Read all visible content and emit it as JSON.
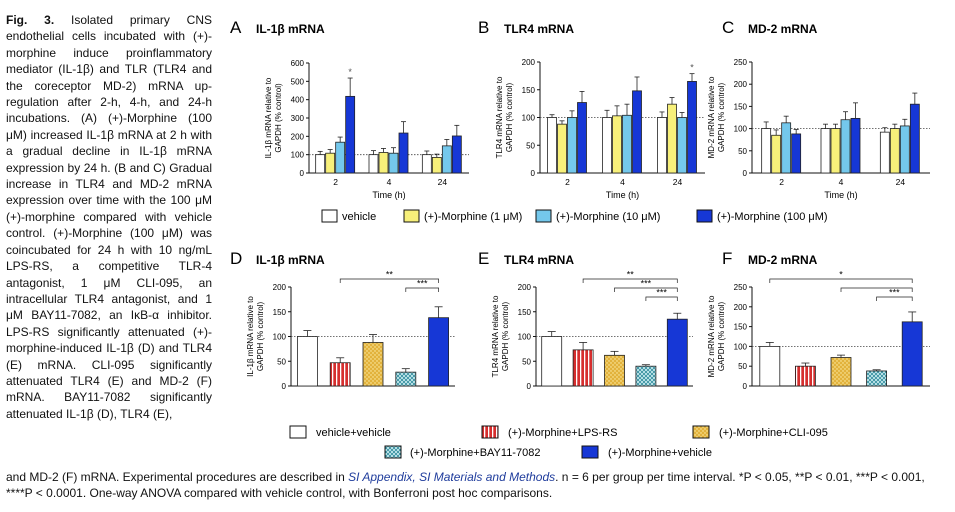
{
  "caption": {
    "fig_label": "Fig. 3.",
    "body": "Isolated primary CNS endothelial cells incubated with (+)-morphine induce proinflammatory mediator (IL-1β) and TLR (TLR4 and the coreceptor MD-2) mRNA up-regulation after 2-h, 4-h, and 24-h incubations. (A) (+)-Morphine (100 μM) increased IL-1β mRNA at 2 h with a gradual decline in IL-1β mRNA expression by 24 h. (B and C) Gradual increase in TLR4 and MD-2 mRNA expression over time with the 100 μM (+)-morphine compared with vehicle control. (+)-Morphine (100 μM) was coincubated for 24 h with 10 ng/mL LPS-RS, a competitive TLR-4 antagonist, 1 μM CLI-095, an intracellular TLR4 antagonist, and 1 μM BAY11-7082, an IκB-α inhibitor. LPS-RS significantly attenuated (+)-morphine-induced IL-1β (D) and TLR4 (E) mRNA. CLI-095 significantly attenuated TLR4 (E) and MD-2 (F) mRNA. BAY11-7082 significantly attenuated IL-1β (D), TLR4 (E),",
    "tail_start": "and MD-2 (F) mRNA. Experimental procedures are described in ",
    "tail_link": "SI Appendix, SI Materials and Methods",
    "tail_end": ". n = 6 per group per time interval. *P < 0.05, **P < 0.01, ***P < 0.001, ****P < 0.0001. One-way ANOVA compared with vehicle control, with Bonferroni post hoc comparisons."
  },
  "colors": {
    "vehicle": "#ffffff",
    "morphine_1": "#f7f07a",
    "morphine_10": "#74c8ec",
    "morphine_100": "#1637d6",
    "lps_rs": "#d62e2e",
    "cli095": "#e2b23c",
    "bay11": "#2d8a9a",
    "veh_morphine": "#1637d6"
  },
  "legend_top": [
    "vehicle",
    "(+)-Morphine (1 μM)",
    "(+)-Morphine (10 μM)",
    "(+)-Morphine (100 μM)"
  ],
  "legend_bottom": [
    "vehicle+vehicle",
    "(+)-Morphine+LPS-RS",
    "(+)-Morphine+CLI-095",
    "(+)-Morphine+BAY11-7082",
    "(+)-Morphine+vehicle"
  ],
  "chart_data": [
    {
      "panel": "A",
      "type": "bar",
      "title": "IL-1β mRNA",
      "ylabel": "IL-1β mRNA relative to GAPDH (% control)",
      "xlabel": "Time (h)",
      "categories": [
        "2",
        "4",
        "24"
      ],
      "ylim": [
        0,
        600
      ],
      "yticks": [
        0,
        100,
        200,
        300,
        400,
        500,
        600
      ],
      "series": [
        {
          "name": "vehicle",
          "values": [
            100,
            100,
            100
          ],
          "errors": [
            18,
            22,
            20
          ]
        },
        {
          "name": "(+)-Morphine (1 μM)",
          "values": [
            108,
            112,
            85
          ],
          "errors": [
            20,
            22,
            18
          ]
        },
        {
          "name": "(+)-Morphine (10 μM)",
          "values": [
            168,
            108,
            148
          ],
          "errors": [
            28,
            30,
            35
          ]
        },
        {
          "name": "(+)-Morphine (100 μM)",
          "values": [
            418,
            218,
            202
          ],
          "errors": [
            100,
            62,
            58
          ]
        }
      ],
      "annotations": [
        {
          "category": "2",
          "text": "*"
        }
      ]
    },
    {
      "panel": "B",
      "type": "bar",
      "title": "TLR4 mRNA",
      "ylabel": "TLR4 mRNA relative to GAPDH (% control)",
      "xlabel": "Time (h)",
      "categories": [
        "2",
        "4",
        "24"
      ],
      "ylim": [
        0,
        200
      ],
      "yticks": [
        0,
        50,
        100,
        150,
        200
      ],
      "series": [
        {
          "name": "vehicle",
          "values": [
            100,
            100,
            100
          ],
          "errors": [
            5,
            13,
            10
          ]
        },
        {
          "name": "(+)-Morphine (1 μM)",
          "values": [
            88,
            103,
            124
          ],
          "errors": [
            6,
            18,
            12
          ]
        },
        {
          "name": "(+)-Morphine (10 μM)",
          "values": [
            100,
            104,
            100
          ],
          "errors": [
            12,
            20,
            9
          ]
        },
        {
          "name": "(+)-Morphine (100 μM)",
          "values": [
            127,
            148,
            165
          ],
          "errors": [
            20,
            25,
            14
          ]
        }
      ],
      "annotations": [
        {
          "category": "24",
          "text": "*"
        }
      ]
    },
    {
      "panel": "C",
      "type": "bar",
      "title": "MD-2 mRNA",
      "ylabel": "MD-2 mRNA relative to GAPDH (% control)",
      "xlabel": "Time (h)",
      "categories": [
        "2",
        "4",
        "24"
      ],
      "ylim": [
        0,
        250
      ],
      "yticks": [
        0,
        50,
        100,
        150,
        200,
        250
      ],
      "series": [
        {
          "name": "vehicle",
          "values": [
            100,
            100,
            92
          ],
          "errors": [
            15,
            10,
            10
          ]
        },
        {
          "name": "(+)-Morphine (1 μM)",
          "values": [
            85,
            100,
            100
          ],
          "errors": [
            12,
            10,
            10
          ]
        },
        {
          "name": "(+)-Morphine (10 μM)",
          "values": [
            113,
            120,
            106
          ],
          "errors": [
            15,
            18,
            15
          ]
        },
        {
          "name": "(+)-Morphine (100 μM)",
          "values": [
            88,
            123,
            155
          ],
          "errors": [
            10,
            35,
            25
          ]
        }
      ]
    },
    {
      "panel": "D",
      "type": "bar",
      "title": "IL-1β mRNA",
      "ylabel": "IL-1β mRNA relative to GAPDH (% control)",
      "categories": [
        "vehicle+vehicle",
        "(+)-Morphine+LPS-RS",
        "(+)-Morphine+CLI-095",
        "(+)-Morphine+BAY11-7082",
        "(+)-Morphine+vehicle"
      ],
      "ylim": [
        0,
        200
      ],
      "yticks": [
        0,
        50,
        100,
        150,
        200
      ],
      "values": [
        100,
        47,
        88,
        28,
        138
      ],
      "errors": [
        12,
        10,
        16,
        7,
        22
      ],
      "brackets": [
        {
          "from": 1,
          "to": 4,
          "text": "**"
        },
        {
          "from": 3,
          "to": 4,
          "text": "***"
        }
      ]
    },
    {
      "panel": "E",
      "type": "bar",
      "title": "TLR4 mRNA",
      "ylabel": "TLR4 mRNA relative to GAPDH (% control)",
      "categories": [
        "vehicle+vehicle",
        "(+)-Morphine+LPS-RS",
        "(+)-Morphine+CLI-095",
        "(+)-Morphine+BAY11-7082",
        "(+)-Morphine+vehicle"
      ],
      "ylim": [
        0,
        200
      ],
      "yticks": [
        0,
        50,
        100,
        150,
        200
      ],
      "values": [
        100,
        73,
        62,
        40,
        135
      ],
      "errors": [
        10,
        15,
        8,
        3,
        12
      ],
      "brackets": [
        {
          "from": 1,
          "to": 4,
          "text": "**"
        },
        {
          "from": 2,
          "to": 4,
          "text": "***"
        },
        {
          "from": 3,
          "to": 4,
          "text": "***"
        }
      ]
    },
    {
      "panel": "F",
      "type": "bar",
      "title": "MD-2 mRNA",
      "ylabel": "MD-2 mRNA relative to GAPDH (% control)",
      "categories": [
        "vehicle+vehicle",
        "(+)-Morphine+LPS-RS",
        "(+)-Morphine+CLI-095",
        "(+)-Morphine+BAY11-7082",
        "(+)-Morphine+vehicle"
      ],
      "ylim": [
        0,
        250
      ],
      "yticks": [
        0,
        50,
        100,
        150,
        200,
        250
      ],
      "values": [
        100,
        50,
        72,
        38,
        162
      ],
      "errors": [
        10,
        8,
        6,
        3,
        25
      ],
      "brackets": [
        {
          "from": 0,
          "to": 4,
          "text": "*"
        },
        {
          "from": 2,
          "to": 4,
          "text": ""
        },
        {
          "from": 3,
          "to": 4,
          "text": "***"
        }
      ]
    }
  ]
}
